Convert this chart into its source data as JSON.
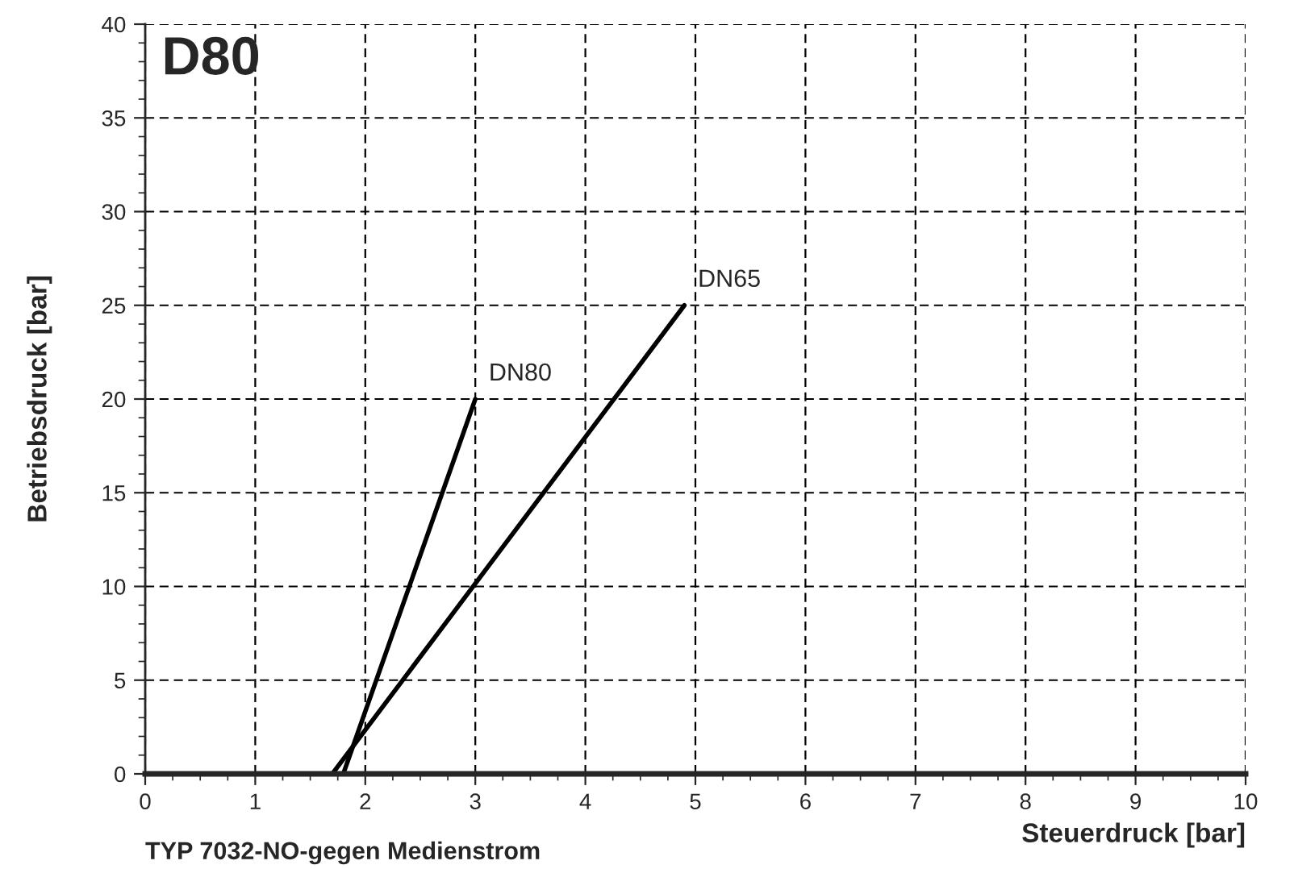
{
  "chart_data": {
    "type": "line",
    "xlabel": "Steuerdruck [bar]",
    "ylabel": "Betriebsdruck [bar]",
    "annotations": [
      "D80",
      "TYP 7032-NO-gegen Medienstrom"
    ],
    "series": [
      {
        "name": "DN80",
        "color": "#000000",
        "x": [
          1.8,
          3
        ],
        "values": [
          0,
          20
        ]
      },
      {
        "name": "DN65",
        "color": "#000000",
        "x": [
          1.7,
          4.9
        ],
        "values": [
          0,
          25
        ]
      }
    ],
    "xlim": [
      0,
      10
    ],
    "ylim": [
      0,
      40
    ],
    "xticks": [
      0,
      1,
      2,
      3,
      4,
      5,
      6,
      7,
      8,
      9,
      10
    ],
    "yticks": [
      0,
      5,
      10,
      15,
      20,
      25,
      30,
      35,
      40
    ],
    "grid": true,
    "marker": "none",
    "line_style": "solid",
    "legend": false
  }
}
